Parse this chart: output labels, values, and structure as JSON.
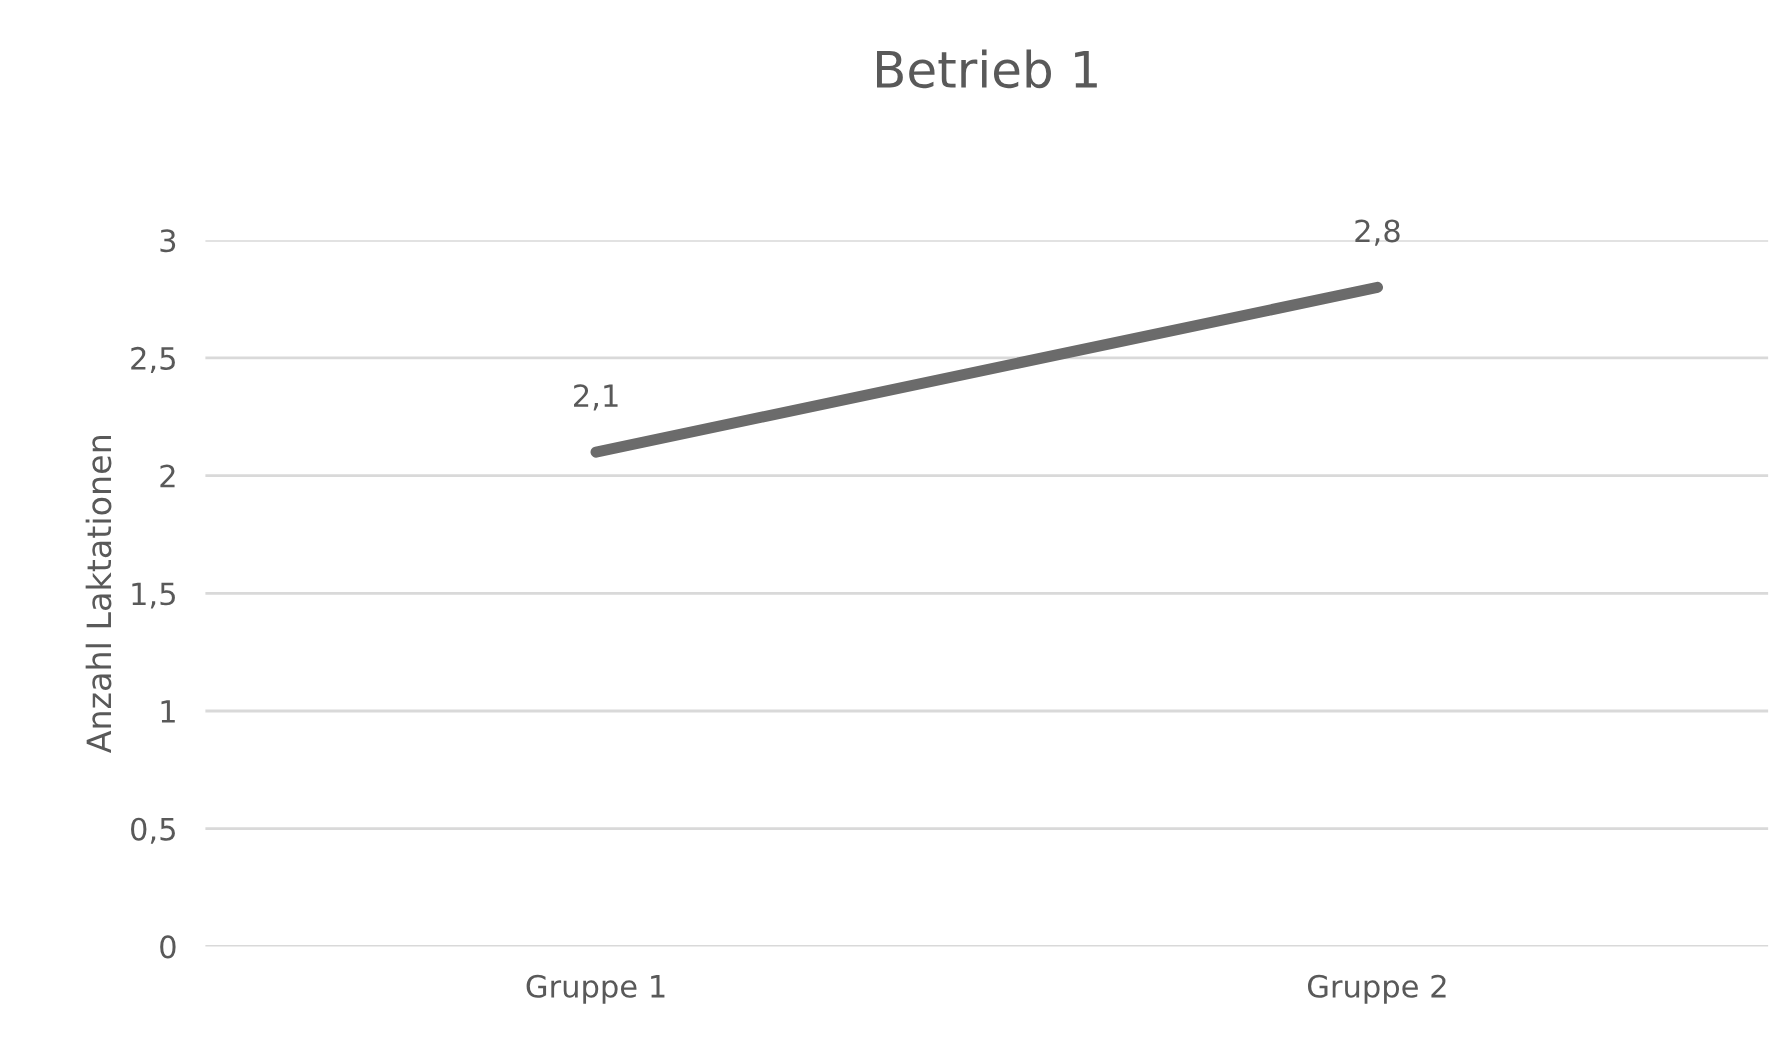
{
  "chart_data": {
    "type": "line",
    "title": "Betrieb 1",
    "ylabel": "Anzahl Laktationen",
    "categories": [
      "Gruppe 1",
      "Gruppe 2"
    ],
    "series": [
      {
        "color": "#6b6b6b",
        "values": [
          2.1,
          2.8
        ],
        "value_labels": [
          "2,1",
          "2,8"
        ]
      }
    ],
    "ylim": [
      0,
      3
    ],
    "yticks": [
      0,
      {
        "value": 0.5,
        "label": "0,5"
      },
      1,
      {
        "value": 1.5,
        "label": "1,5"
      },
      2,
      {
        "value": 2.5,
        "label": "2,5"
      },
      3
    ],
    "grid": "y",
    "legend": false,
    "marker": "none",
    "line_style": "solid"
  }
}
